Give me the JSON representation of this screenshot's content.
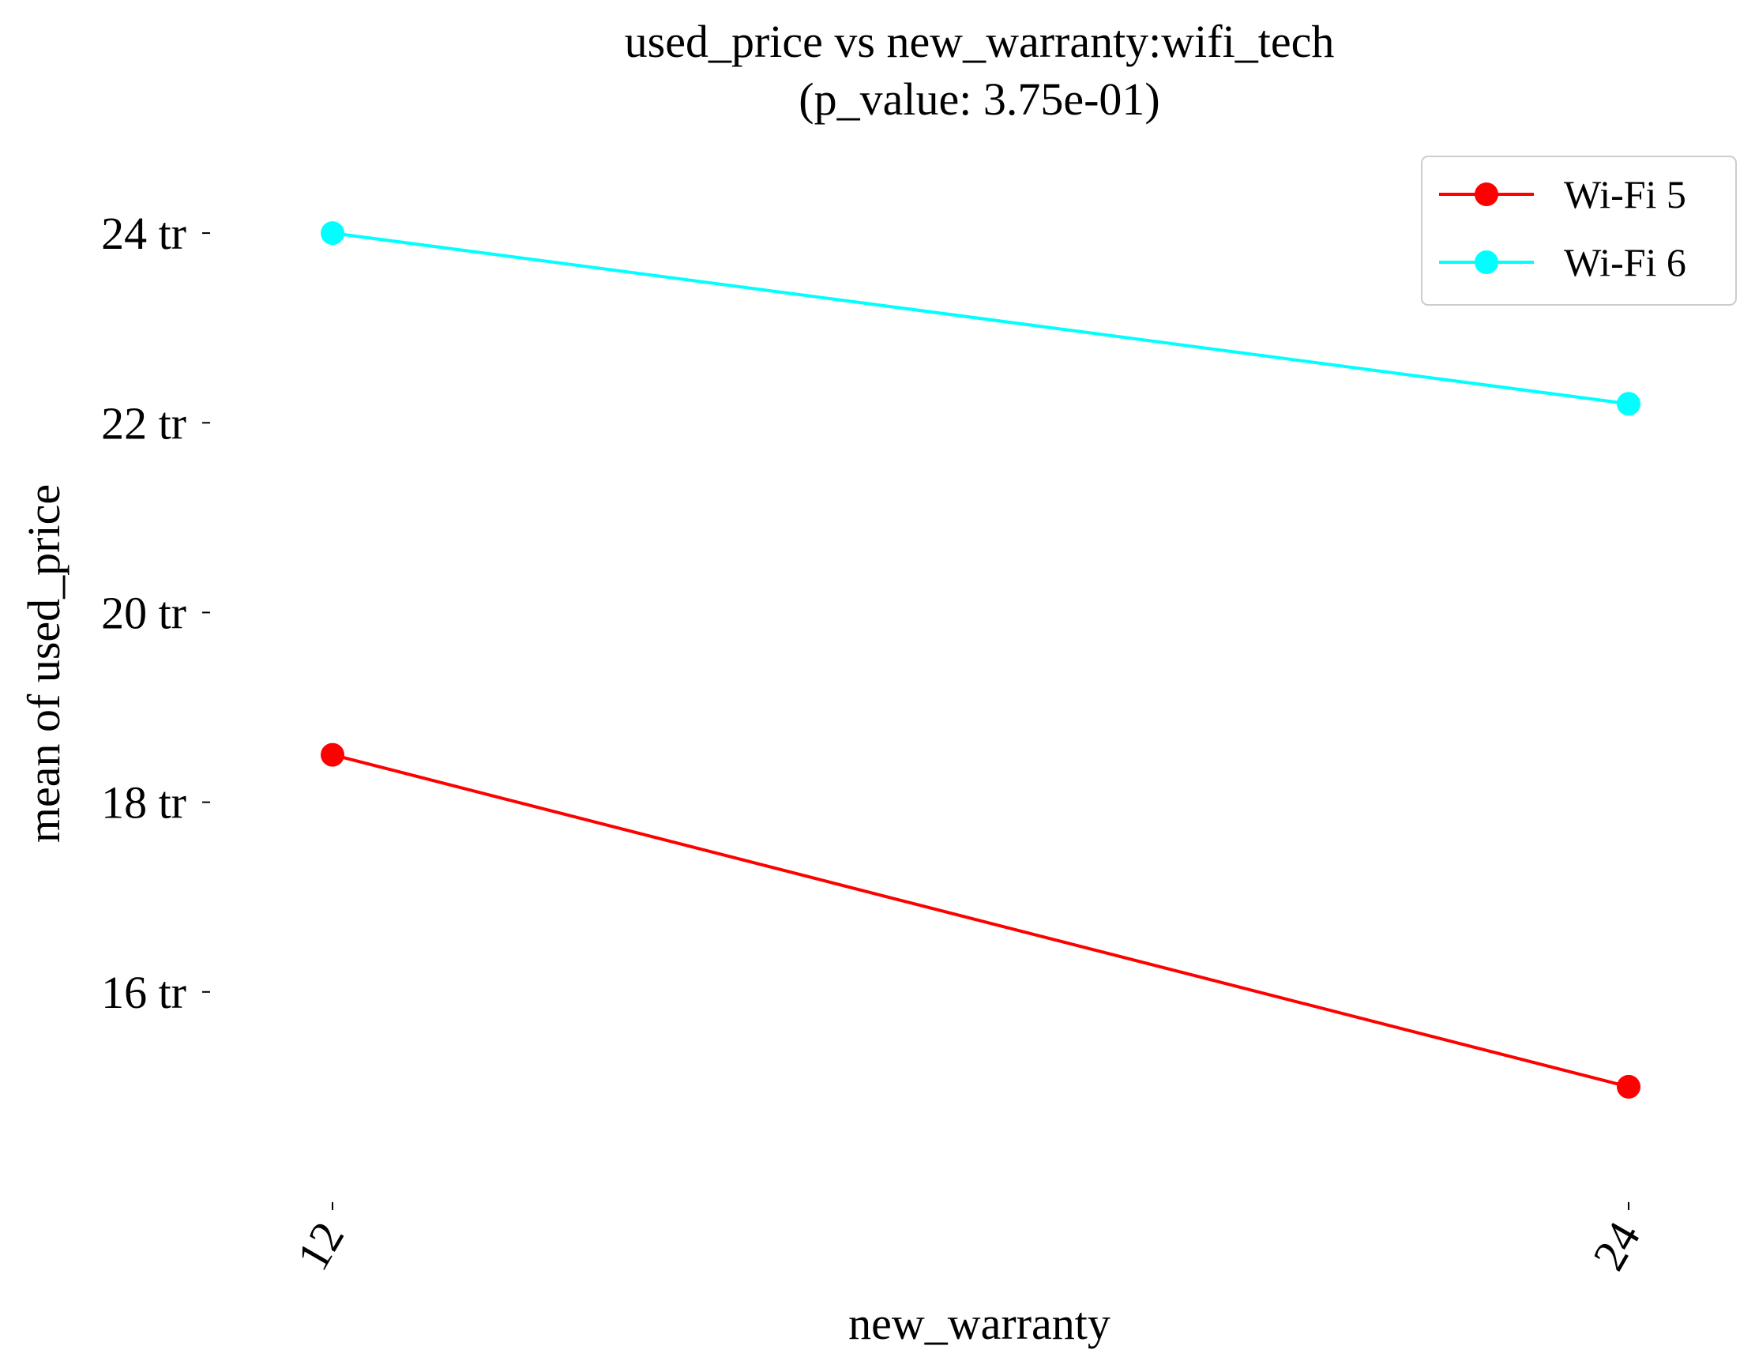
{
  "chart_data": {
    "type": "line",
    "title": "used_price vs new_warranty:wifi_tech",
    "subtitle": "(p_value: 3.75e-01)",
    "xlabel": "new_warranty",
    "ylabel": "mean of used_price",
    "categories": [
      "12",
      "24"
    ],
    "yticks": [
      16,
      18,
      20,
      22,
      24
    ],
    "ytick_labels": [
      "16 tr",
      "18 tr",
      "20 tr",
      "22 tr",
      "24 tr"
    ],
    "ylim": [
      13.8,
      25.0
    ],
    "grid": false,
    "legend_position": "top-right",
    "series": [
      {
        "name": "Wi-Fi 5",
        "color": "#ff0000",
        "values": [
          18.5,
          15.0
        ]
      },
      {
        "name": "Wi-Fi 6",
        "color": "#00ffff",
        "values": [
          24.0,
          22.2
        ]
      }
    ]
  }
}
